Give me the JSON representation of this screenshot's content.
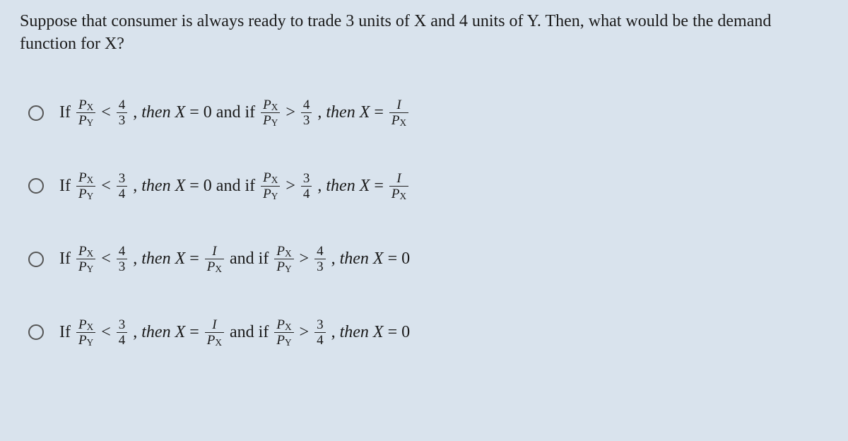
{
  "question": "Suppose that consumer is always ready to trade 3 units of X and 4 units of Y. Then, what would be the demand function for X?",
  "symbols": {
    "Px": "P",
    "xsub": "X",
    "Py": "P",
    "ysub": "Y",
    "I": "I",
    "X": "X",
    "If": "If",
    "then": "then",
    "andif": "and if",
    "lt": "<",
    "gt": ">",
    "eq": "=",
    "comma": ",",
    "zero": "0",
    "three": "3",
    "four": "4"
  },
  "options": [
    {
      "firstThresholdNum": "4",
      "firstThresholdDen": "3",
      "firstResultIsZero": true,
      "secondThresholdNum": "4",
      "secondThresholdDen": "3",
      "secondResultIsZero": false
    },
    {
      "firstThresholdNum": "3",
      "firstThresholdDen": "4",
      "firstResultIsZero": true,
      "secondThresholdNum": "3",
      "secondThresholdDen": "4",
      "secondResultIsZero": false
    },
    {
      "firstThresholdNum": "4",
      "firstThresholdDen": "3",
      "firstResultIsZero": false,
      "secondThresholdNum": "4",
      "secondThresholdDen": "3",
      "secondResultIsZero": true
    },
    {
      "firstThresholdNum": "3",
      "firstThresholdDen": "4",
      "firstResultIsZero": false,
      "secondThresholdNum": "3",
      "secondThresholdDen": "4",
      "secondResultIsZero": true
    }
  ],
  "style": {
    "background": "#d9e3ed",
    "textColor": "#1a1a1a",
    "questionFontSize": 24,
    "optionFontSize": 24,
    "fracFontSize": 19,
    "radioBorder": "#555",
    "fontFamily": "Times New Roman"
  }
}
